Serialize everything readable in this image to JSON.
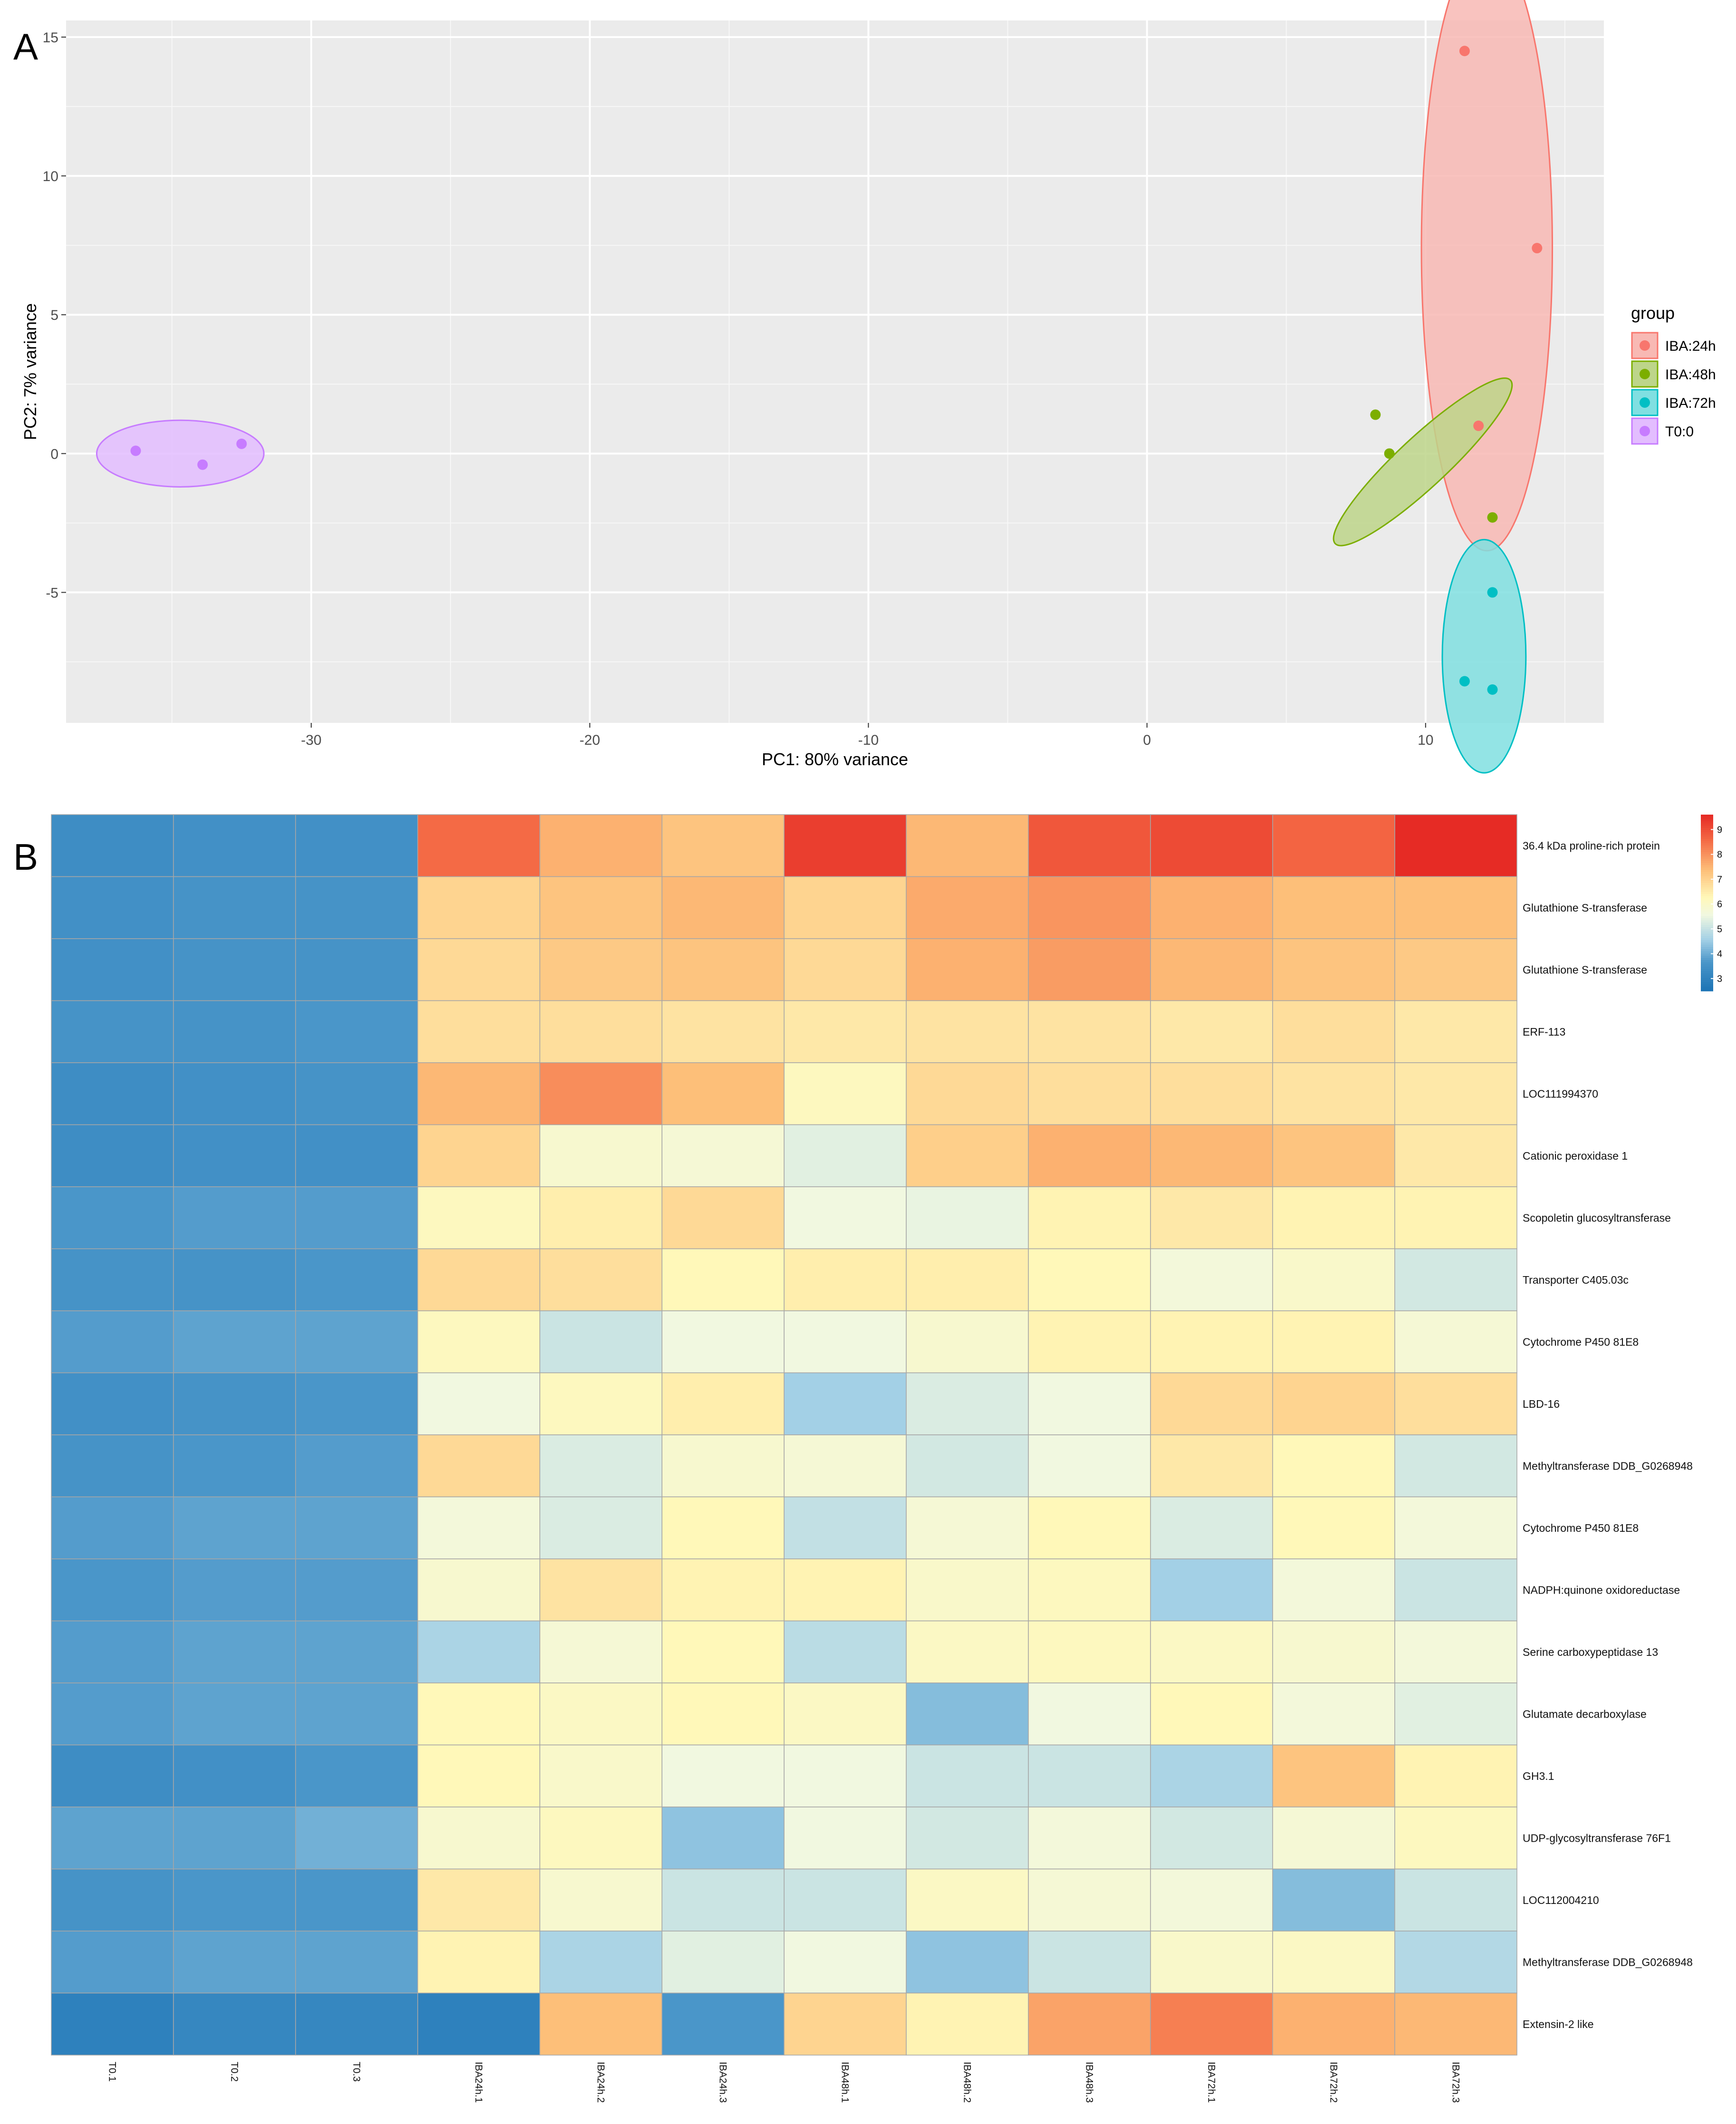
{
  "panels": {
    "a_label": "A",
    "b_label": "B"
  },
  "chart_data": [
    {
      "type": "scatter",
      "panel": "A",
      "title": "",
      "xlabel": "PC1: 80% variance",
      "ylabel": "PC2: 7% variance",
      "xlim": [
        -38.8,
        16.4
      ],
      "ylim": [
        -9.7,
        15.6
      ],
      "x_ticks": [
        -30,
        -20,
        -10,
        0,
        10
      ],
      "y_ticks": [
        -5,
        0,
        5,
        10,
        15
      ],
      "grid": true,
      "legend": {
        "title": "group",
        "position": "right"
      },
      "series": [
        {
          "name": "IBA:24h",
          "color": "#f8766d",
          "fill": "#f8b9b4",
          "points": [
            [
              11.4,
              14.5
            ],
            [
              14.0,
              7.4
            ],
            [
              11.9,
              1.0
            ]
          ],
          "ellipse": {
            "cx": 12.2,
            "cy": 7.4,
            "rx": 2.35,
            "ry": 10.9,
            "angle": 0
          }
        },
        {
          "name": "IBA:48h",
          "color": "#7cae00",
          "fill": "#bdd58a",
          "points": [
            [
              8.2,
              1.4
            ],
            [
              8.7,
              0.0
            ],
            [
              12.4,
              -2.3
            ]
          ],
          "ellipse": {
            "cx": 9.9,
            "cy": -0.3,
            "rx": 4.3,
            "ry": 0.9,
            "angle": -43
          }
        },
        {
          "name": "IBA:72h",
          "color": "#00bfc4",
          "fill": "#80dfe1",
          "points": [
            [
              12.4,
              -5.0
            ],
            [
              11.4,
              -8.2
            ],
            [
              12.4,
              -8.5
            ]
          ],
          "ellipse": {
            "cx": 12.1,
            "cy": -7.3,
            "rx": 1.5,
            "ry": 4.2,
            "angle": 0
          }
        },
        {
          "name": "T0:0",
          "color": "#c77cff",
          "fill": "#e3bdff",
          "points": [
            [
              -36.3,
              0.1
            ],
            [
              -32.5,
              0.35
            ],
            [
              -33.9,
              -0.4
            ]
          ],
          "ellipse": {
            "cx": -34.7,
            "cy": 0.0,
            "rx": 3.0,
            "ry": 1.2,
            "angle": 0
          }
        }
      ]
    },
    {
      "type": "heatmap",
      "panel": "B",
      "columns": [
        "T0.1",
        "T0.2",
        "T0.3",
        "IBA24h.1",
        "IBA24h.2",
        "IBA24h.3",
        "IBA48h.1",
        "IBA48h.2",
        "IBA48h.3",
        "IBA72h.1",
        "IBA72h.2",
        "IBA72h.3"
      ],
      "rows": [
        "36.4 kDa proline-rich protein",
        "Glutathione S-transferase",
        "Glutathione S-transferase",
        "ERF-113",
        "LOC111994370",
        "Cationic peroxidase 1",
        "Scopoletin glucosyltransferase",
        "Transporter C405.03c",
        "Cytochrome P450 81E8",
        "LBD-16",
        "Methyltransferase DDB_G0268948",
        "Cytochrome P450 81E8",
        "NADPH:quinone oxidoreductase",
        "Serine carboxypeptidase 13",
        "Glutamate decarboxylase",
        "GH3.1",
        "UDP-glycosyltransferase 76F1",
        "LOC112004210",
        "Methyltransferase DDB_G0268948",
        "Extensin-2 like"
      ],
      "values": [
        [
          3.4,
          3.5,
          3.5,
          8.6,
          7.6,
          7.3,
          9.3,
          7.5,
          8.9,
          9.1,
          8.7,
          9.6
        ],
        [
          3.5,
          3.6,
          3.6,
          7.0,
          7.3,
          7.5,
          7.0,
          7.7,
          8.0,
          7.6,
          7.4,
          7.4
        ],
        [
          3.5,
          3.6,
          3.6,
          6.9,
          7.2,
          7.3,
          6.9,
          7.6,
          7.9,
          7.5,
          7.3,
          7.2
        ],
        [
          3.6,
          3.6,
          3.7,
          6.8,
          6.8,
          6.7,
          6.6,
          6.7,
          6.7,
          6.6,
          6.8,
          6.6
        ],
        [
          3.4,
          3.5,
          3.6,
          7.5,
          8.1,
          7.4,
          6.2,
          6.9,
          6.8,
          6.8,
          6.7,
          6.6
        ],
        [
          3.4,
          3.5,
          3.5,
          7.0,
          5.9,
          5.8,
          5.4,
          7.1,
          7.6,
          7.5,
          7.3,
          6.6
        ],
        [
          3.7,
          3.8,
          3.8,
          6.2,
          6.5,
          6.9,
          5.6,
          5.5,
          6.4,
          6.6,
          6.4,
          6.4
        ],
        [
          3.6,
          3.6,
          3.7,
          6.9,
          6.8,
          6.3,
          6.5,
          6.5,
          6.3,
          5.7,
          6.0,
          5.2
        ],
        [
          3.8,
          3.9,
          3.9,
          6.2,
          5.1,
          5.6,
          5.6,
          5.9,
          6.4,
          6.4,
          6.4,
          5.8
        ],
        [
          3.5,
          3.6,
          3.7,
          5.6,
          6.2,
          6.5,
          4.6,
          5.3,
          5.6,
          6.9,
          7.0,
          6.8
        ],
        [
          3.6,
          3.7,
          3.8,
          6.9,
          5.3,
          5.9,
          5.8,
          5.2,
          5.6,
          6.6,
          6.3,
          5.2
        ],
        [
          3.8,
          3.9,
          3.9,
          5.7,
          5.3,
          6.3,
          5.0,
          5.8,
          6.3,
          5.3,
          6.3,
          5.7
        ],
        [
          3.7,
          3.8,
          3.8,
          5.9,
          6.7,
          6.4,
          6.4,
          6.0,
          6.2,
          4.6,
          5.7,
          5.1
        ],
        [
          3.8,
          3.9,
          3.9,
          4.7,
          5.8,
          6.3,
          4.9,
          6.1,
          6.2,
          6.1,
          5.9,
          5.7
        ],
        [
          3.8,
          3.9,
          3.9,
          6.3,
          6.1,
          6.3,
          6.1,
          4.3,
          5.6,
          6.3,
          5.7,
          5.4
        ],
        [
          3.4,
          3.5,
          3.7,
          6.3,
          6.0,
          5.6,
          5.6,
          5.1,
          5.1,
          4.7,
          7.3,
          6.4
        ],
        [
          3.9,
          3.9,
          4.1,
          5.9,
          6.2,
          4.4,
          5.6,
          5.2,
          5.7,
          5.2,
          5.8,
          6.2
        ],
        [
          3.6,
          3.7,
          3.7,
          6.6,
          5.9,
          5.1,
          5.1,
          6.1,
          5.8,
          5.7,
          4.3,
          5.1
        ],
        [
          3.8,
          3.9,
          3.9,
          6.4,
          4.7,
          5.4,
          5.6,
          4.4,
          5.1,
          6.0,
          6.1,
          4.8
        ],
        [
          3.0,
          3.2,
          3.2,
          3.0,
          7.4,
          3.7,
          7.0,
          6.4,
          7.8,
          8.3,
          7.6,
          7.5
        ]
      ],
      "scale": {
        "min": 2.5,
        "max": 9.6,
        "ticks": [
          3,
          4,
          5,
          6,
          7,
          8,
          9
        ],
        "colors": [
          "#1a72b4",
          "#4a96c9",
          "#a3d0e6",
          "#f1f8e0",
          "#fff8b9",
          "#fdbf79",
          "#f46a45",
          "#e62b25"
        ],
        "stops": [
          2.5,
          3.7,
          4.6,
          5.6,
          6.3,
          7.4,
          8.6,
          9.6
        ]
      }
    }
  ]
}
